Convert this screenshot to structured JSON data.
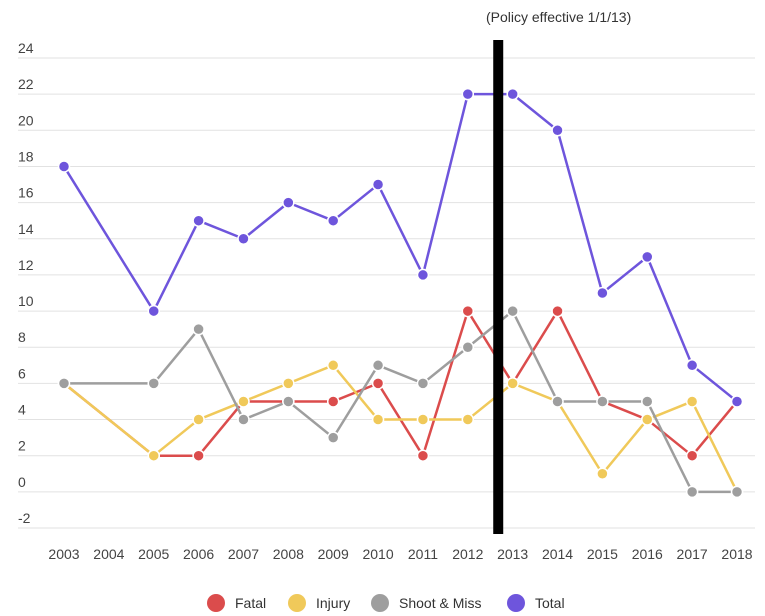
{
  "chart_data": {
    "type": "line",
    "title": "",
    "xlabel": "",
    "ylabel": "",
    "annotation": "(Policy effective 1/1/13)",
    "x": [
      "2003",
      "2004",
      "2005",
      "2006",
      "2007",
      "2008",
      "2009",
      "2010",
      "2011",
      "2012",
      "2013",
      "2014",
      "2015",
      "2016",
      "2017",
      "2018"
    ],
    "yticks": [
      "24",
      "22",
      "20",
      "18",
      "16",
      "14",
      "12",
      "10",
      "8",
      "6",
      "4",
      "2",
      "0",
      "-2"
    ],
    "ylim": [
      -2,
      24
    ],
    "policy_line_year": "2013",
    "grid": true,
    "legend_position": "bottom",
    "series": [
      {
        "name": "Fatal",
        "color": "#db4c4c",
        "values": [
          6,
          null,
          2,
          2,
          5,
          5,
          5,
          6,
          2,
          10,
          6,
          10,
          5,
          4,
          2,
          5
        ]
      },
      {
        "name": "Injury",
        "color": "#f0c95a",
        "values": [
          6,
          null,
          2,
          4,
          5,
          6,
          7,
          4,
          4,
          4,
          6,
          5,
          1,
          4,
          5,
          0
        ]
      },
      {
        "name": "Shoot & Miss",
        "color": "#9e9e9e",
        "values": [
          6,
          null,
          6,
          9,
          4,
          5,
          3,
          7,
          6,
          8,
          10,
          5,
          5,
          5,
          0,
          0
        ]
      },
      {
        "name": "Total",
        "color": "#6e55dc",
        "values": [
          18,
          null,
          10,
          15,
          14,
          16,
          15,
          17,
          12,
          22,
          22,
          20,
          11,
          13,
          7,
          5
        ]
      }
    ]
  }
}
